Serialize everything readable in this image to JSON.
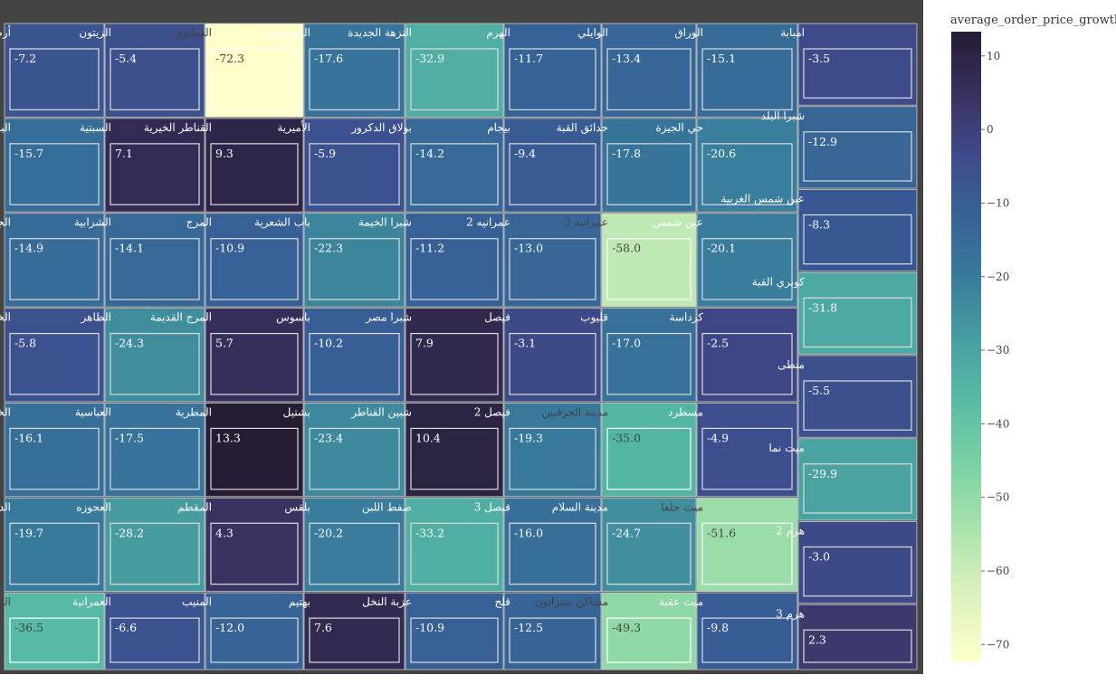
{
  "chart_data": {
    "type": "treemap",
    "colorbar": {
      "title": "average_order_price_growth",
      "ticks": [
        10,
        0,
        -10,
        -20,
        -30,
        -40,
        -50,
        -60,
        -70
      ],
      "range": [
        -72.3,
        13.3
      ]
    },
    "columns": [
      [
        {
          "name": "أرض اللواء",
          "value": -7.2
        },
        {
          "name": "البراجيل",
          "value": -15.7
        },
        {
          "name": "الجبل الاصفر",
          "value": -14.9
        },
        {
          "name": "الخانكة",
          "value": -5.8
        },
        {
          "name": "الخصوص",
          "value": -16.1
        },
        {
          "name": "الدقي",
          "value": -19.7
        },
        {
          "name": "الزاوية الحمراء",
          "value": -36.5
        }
      ],
      [
        {
          "name": "الزيتون",
          "value": -5.4
        },
        {
          "name": "السبتية",
          "value": 7.1
        },
        {
          "name": "الشرابية",
          "value": -14.1
        },
        {
          "name": "الظاهر",
          "value": -24.3
        },
        {
          "name": "العباسية",
          "value": -17.5
        },
        {
          "name": "العجوزه",
          "value": -28.2
        },
        {
          "name": "العمرانية",
          "value": -6.6
        }
      ],
      [
        {
          "name": "القطاوي",
          "value": -72.3
        },
        {
          "name": "القناطر الخيرية",
          "value": 9.3
        },
        {
          "name": "المرج",
          "value": -10.9
        },
        {
          "name": "المرج القديمة",
          "value": 5.7
        },
        {
          "name": "المطرية",
          "value": 13.3
        },
        {
          "name": "المقطم",
          "value": 4.3
        },
        {
          "name": "المنيب",
          "value": -12.0
        }
      ],
      [
        {
          "name": "المهندسين",
          "value": -17.6
        },
        {
          "name": "الأميرية",
          "value": -5.9
        },
        {
          "name": "باب الشعرية",
          "value": -22.3
        },
        {
          "name": "باسوس",
          "value": -10.2
        },
        {
          "name": "بشتيل",
          "value": -23.4
        },
        {
          "name": "بلقس",
          "value": -20.2
        },
        {
          "name": "بهتيم",
          "value": 7.6
        }
      ],
      [
        {
          "name": "النزهة الجديدة",
          "value": -32.9
        },
        {
          "name": "بولاق الدكرور",
          "value": -14.2
        },
        {
          "name": "شبرا الخيمة",
          "value": -11.2
        },
        {
          "name": "شبرا مصر",
          "value": 7.9
        },
        {
          "name": "شبين القناطر",
          "value": 10.4
        },
        {
          "name": "صفط اللبن",
          "value": -33.2
        },
        {
          "name": "عزبة النخل",
          "value": -10.9
        }
      ],
      [
        {
          "name": "الهرم",
          "value": -11.7
        },
        {
          "name": "بيجام",
          "value": -9.4
        },
        {
          "name": "عمرانيه 2",
          "value": -13.0
        },
        {
          "name": "فيصل",
          "value": -3.1
        },
        {
          "name": "فيصل 2",
          "value": -19.3
        },
        {
          "name": "فيصل 3",
          "value": -16.0
        },
        {
          "name": "قلج",
          "value": -12.5
        }
      ],
      [
        {
          "name": "الوايلي",
          "value": -13.4
        },
        {
          "name": "حدائق القبة",
          "value": -17.8
        },
        {
          "name": "عمرانيه 3",
          "value": -58.0
        },
        {
          "name": "قليوب",
          "value": -17.0
        },
        {
          "name": "مدينة الحرفيين",
          "value": -35.0
        },
        {
          "name": "مدينة السلام",
          "value": -24.7
        },
        {
          "name": "مساكن شيراتون",
          "value": -49.3
        }
      ],
      [
        {
          "name": "الوراق",
          "value": -15.1
        },
        {
          "name": "حي الجيزة",
          "value": -20.6
        },
        {
          "name": "عين شمس",
          "value": -20.1
        },
        {
          "name": "كرداسة",
          "value": -2.5
        },
        {
          "name": "مسطرد",
          "value": -4.9
        },
        {
          "name": "ميت حلفا",
          "value": -51.6
        },
        {
          "name": "ميت عقبة",
          "value": -9.8
        }
      ],
      [
        {
          "name": "امبابة",
          "value": -3.5
        },
        {
          "name": "شبرا البلد",
          "value": -12.9
        },
        {
          "name": "عين شمس الغربية",
          "value": -8.3
        },
        {
          "name": "كوبري القبة",
          "value": -31.8
        },
        {
          "name": "منطى",
          "value": -5.5
        },
        {
          "name": "ميت نما",
          "value": -29.9
        },
        {
          "name": "هرم 2",
          "value": -3.0
        },
        {
          "name": "هرم 3",
          "value": 2.3
        }
      ]
    ]
  }
}
